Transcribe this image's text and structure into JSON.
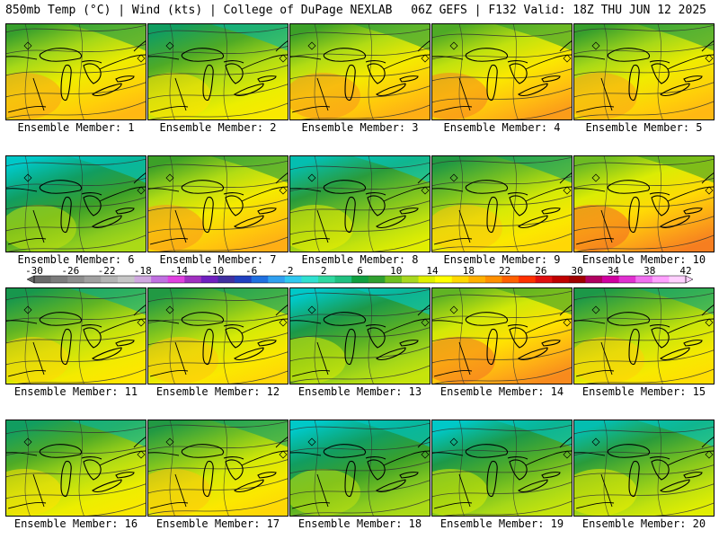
{
  "header": {
    "left": "850mb Temp (°C) | Wind (kts) | College of DuPage NEXLAB",
    "right": "06Z GEFS | F132 Valid: 18Z THU JUN 12 2025"
  },
  "colorbar": {
    "labels": [
      "-30",
      "-26",
      "-22",
      "-18",
      "-14",
      "-10",
      "-6",
      "-2",
      "2",
      "6",
      "10",
      "14",
      "18",
      "22",
      "26",
      "30",
      "34",
      "38",
      "42"
    ],
    "colors": [
      "#6a6a6a",
      "#7c7c7c",
      "#8e8e8e",
      "#a0a0a0",
      "#b4b4b4",
      "#c6c6c6",
      "#d0a8e0",
      "#c070e0",
      "#e040e0",
      "#a030c0",
      "#7020c0",
      "#4030a0",
      "#2040c0",
      "#2070e0",
      "#30a0f0",
      "#30c8f0",
      "#30e0d0",
      "#30d8a0",
      "#20c080",
      "#10a040",
      "#30a030",
      "#70c020",
      "#a8d820",
      "#e0f000",
      "#ffff00",
      "#ffd800",
      "#ffb000",
      "#ff9000",
      "#ff6000",
      "#ff3000",
      "#e01010",
      "#c00000",
      "#a00000",
      "#b00060",
      "#d000a0",
      "#e030d0",
      "#f070f0",
      "#ffa0ff",
      "#ffd0ff"
    ]
  },
  "members": [
    {
      "label": "Ensemble Member: 1",
      "warmth": 0.7
    },
    {
      "label": "Ensemble Member: 2",
      "warmth": 0.55
    },
    {
      "label": "Ensemble Member: 3",
      "warmth": 0.72
    },
    {
      "label": "Ensemble Member: 4",
      "warmth": 0.75
    },
    {
      "label": "Ensemble Member: 5",
      "warmth": 0.7
    },
    {
      "label": "Ensemble Member: 6",
      "warmth": 0.35
    },
    {
      "label": "Ensemble Member: 7",
      "warmth": 0.72
    },
    {
      "label": "Ensemble Member: 8",
      "warmth": 0.45
    },
    {
      "label": "Ensemble Member: 9",
      "warmth": 0.62
    },
    {
      "label": "Ensemble Member: 10",
      "warmth": 0.8
    },
    {
      "label": "Ensemble Member: 11",
      "warmth": 0.58
    },
    {
      "label": "Ensemble Member: 12",
      "warmth": 0.62
    },
    {
      "label": "Ensemble Member: 13",
      "warmth": 0.4
    },
    {
      "label": "Ensemble Member: 14",
      "warmth": 0.78
    },
    {
      "label": "Ensemble Member: 15",
      "warmth": 0.6
    },
    {
      "label": "Ensemble Member: 16",
      "warmth": 0.55
    },
    {
      "label": "Ensemble Member: 17",
      "warmth": 0.62
    },
    {
      "label": "Ensemble Member: 18",
      "warmth": 0.35
    },
    {
      "label": "Ensemble Member: 19",
      "warmth": 0.4
    },
    {
      "label": "Ensemble Member: 20",
      "warmth": 0.45
    }
  ]
}
